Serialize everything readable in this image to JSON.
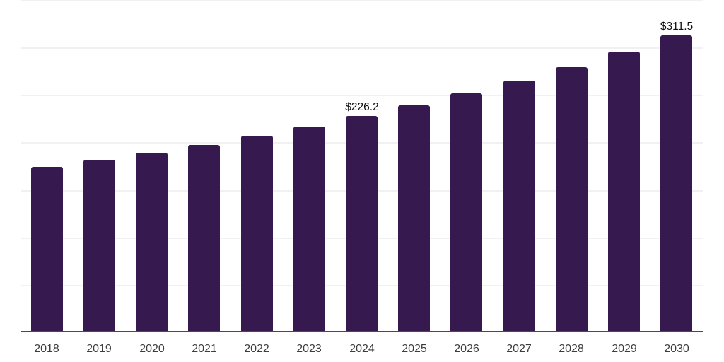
{
  "chart_data": {
    "type": "bar",
    "title": "",
    "xlabel": "",
    "ylabel": "",
    "legend": "none",
    "grid": true,
    "categories": [
      "2018",
      "2019",
      "2020",
      "2021",
      "2022",
      "2023",
      "2024",
      "2025",
      "2026",
      "2027",
      "2028",
      "2029",
      "2030"
    ],
    "values": [
      173.0,
      180.5,
      188.0,
      196.0,
      205.5,
      215.5,
      226.2,
      237.5,
      250.2,
      263.8,
      277.8,
      294.3,
      311.5
    ],
    "data_labels": {
      "2024": "$226.2",
      "2030": "$311.5"
    },
    "ylim": [
      0,
      350
    ],
    "gridline_step": 50,
    "colors": {
      "bar": "#36194E",
      "gridline": "#F1F1F3",
      "axis_line": "#4A4A4A",
      "tick_label": "#3D3D3D",
      "value_label": "#0F0F0F",
      "background": "#FFFFFF"
    }
  }
}
